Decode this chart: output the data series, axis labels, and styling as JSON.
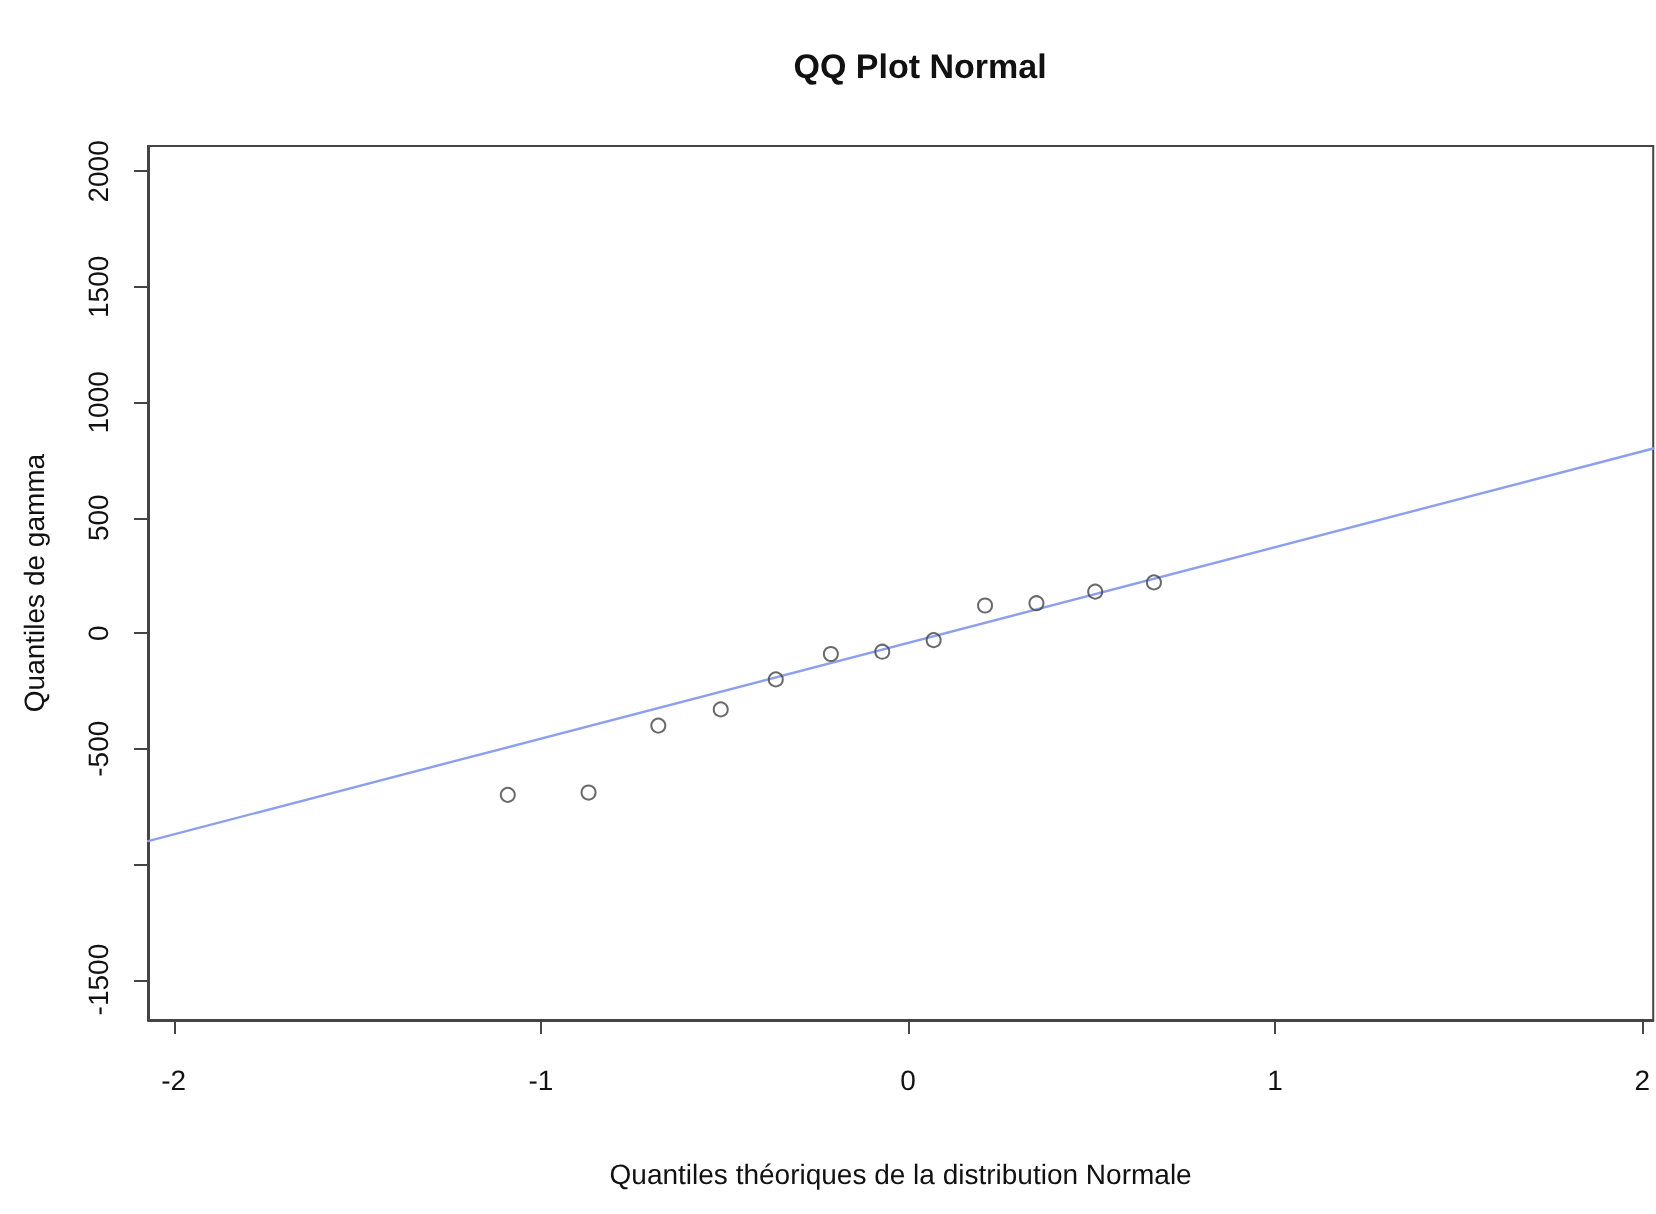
{
  "chart_data": {
    "type": "scatter",
    "title": "QQ Plot Normal",
    "xlabel": "Quantiles théoriques de la distribution Normale",
    "ylabel": "Quantiles de gamma",
    "xlim": [
      -2.07,
      2.03
    ],
    "xticks": [
      -2,
      -1,
      0,
      1,
      2
    ],
    "ylim": [
      -1675,
      2110
    ],
    "yticks": [
      -1500,
      {
        "value": -1000,
        "label": null
      },
      -500,
      0,
      500,
      1000,
      1500,
      2000
    ],
    "grid": false,
    "series": [
      {
        "color": "#444444",
        "marker": "circle",
        "x": [
          -1.09,
          -0.87,
          -0.68,
          -0.51,
          -0.36,
          -0.21,
          -0.07,
          0.07,
          0.21,
          0.35,
          0.51,
          0.67
        ],
        "values": [
          -700,
          -690,
          -400,
          -330,
          -200,
          -90,
          -80,
          -30,
          120,
          130,
          180,
          220
        ]
      },
      {
        "type": "line",
        "color": "#8c9ef2",
        "marker": "none",
        "line_style": "solid",
        "x": [
          -2.07,
          2.03
        ],
        "values": [
          -900,
          800
        ]
      }
    ]
  }
}
